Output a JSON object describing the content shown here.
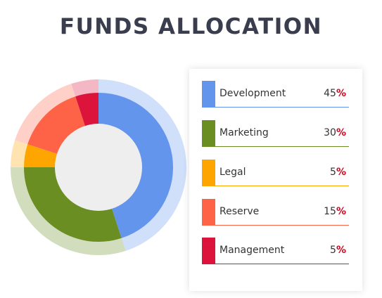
{
  "title": "FUNDS ALLOCATION",
  "chart_data": {
    "type": "pie",
    "variant": "donut",
    "title": "FUNDS ALLOCATION",
    "categories": [
      "Development",
      "Marketing",
      "Legal",
      "Reserve",
      "Management"
    ],
    "values": [
      45,
      30,
      5,
      15,
      5
    ],
    "unit": "%",
    "colors": [
      "#6495ED",
      "#6B8E23",
      "#FFA500",
      "#FF6347",
      "#DC143C"
    ],
    "legend_position": "right"
  },
  "legend": [
    {
      "label": "Development",
      "value": "45",
      "pct": "%",
      "color": "#6495ED"
    },
    {
      "label": "Marketing",
      "value": "30",
      "pct": "%",
      "color": "#6B8E23"
    },
    {
      "label": "Legal",
      "value": "5",
      "pct": "%",
      "color": "#FFA500"
    },
    {
      "label": "Reserve",
      "value": "15",
      "pct": "%",
      "color": "#FF6347"
    },
    {
      "label": "Management",
      "value": "5",
      "pct": "%",
      "color": "#DC143C"
    }
  ]
}
